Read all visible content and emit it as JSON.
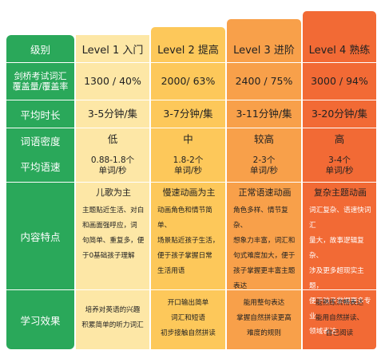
{
  "colors": {
    "label_green": "#2aa85a",
    "level1": "#fde7a6",
    "level1_header": "#fde7a6",
    "level2": "#fdc85a",
    "level3": "#f8a04a",
    "level4": "#f26a35"
  },
  "header": {
    "label": "级别",
    "levels": [
      "Level 1 入门",
      "Level 2 提高",
      "Level 3 进阶",
      "Level 4 熟练"
    ]
  },
  "rows": {
    "vocab": {
      "label_line1": "剑桥考试词汇",
      "label_line2": "覆盖量/覆盖率",
      "values": [
        "1300 / 40%",
        "2000/ 63%",
        "2400 / 75%",
        "3000 / 94%"
      ]
    },
    "duration": {
      "label": "平均时长",
      "values": [
        "3-5分钟/集",
        "3-7分钟/集",
        "3-11分钟/集",
        "3-20分钟/集"
      ]
    },
    "density": {
      "label": "词语密度",
      "values": [
        "低",
        "中",
        "较高",
        "高"
      ]
    },
    "speed": {
      "label": "平均语速",
      "values_line1": [
        "0.88-1.8个",
        "1.8-2个",
        "2-3个",
        "3-4个"
      ],
      "values_line2": [
        "单词/秒",
        "单词/秒",
        "单词/秒",
        "单词/秒"
      ]
    },
    "content": {
      "label": "内容特点",
      "titles": [
        "儿歌为主",
        "慢速动画为主",
        "正常语速动画",
        "复杂主题动画"
      ],
      "lines": [
        [
          "主题贴近生活、对白",
          "和画面强呼应，词",
          "句简单、重复多，便",
          "于0基础孩子理解"
        ],
        [
          "动画角色和情节简单、",
          "场景贴近孩子生活，",
          "便于孩子掌握日常",
          "生活用语"
        ],
        [
          "角色多样、情节复杂、",
          "想象力丰富，词汇和",
          "句式难度加大，便于",
          "孩子掌握更丰富主题",
          "表达"
        ],
        [
          "词汇复杂、语速快词汇",
          "量大，故事逻辑复杂、",
          "涉及更多超现实主题，",
          "便于孩子掌握更多专业",
          "领域表达"
        ]
      ]
    },
    "effect": {
      "label": "学习效果",
      "lines": [
        [
          "培养对英语的兴趣",
          "积累简单的听力词汇"
        ],
        [
          "开口输出简单",
          "词汇和短语",
          "初步接触自然拼读"
        ],
        [
          "能用整句表达",
          "掌握自然拼读更高",
          "难度的规则"
        ],
        [
          "能熟练流畅表达",
          "能用自然拼读、",
          "自己阅读"
        ]
      ]
    }
  }
}
